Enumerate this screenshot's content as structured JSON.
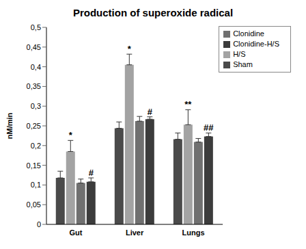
{
  "chart_data": {
    "type": "bar",
    "title": "Production of superoxide radical",
    "y_label": "nM/min",
    "categories": [
      "Gut",
      "Liver",
      "Lungs"
    ],
    "series": [
      {
        "name": "Sham",
        "color": "#4a4a4a",
        "values": [
          0.118,
          0.244,
          0.216
        ],
        "errors": [
          0.017,
          0.016,
          0.016
        ],
        "annotations": [
          null,
          null,
          null
        ]
      },
      {
        "name": "H/S",
        "color": "#a3a3a3",
        "values": [
          0.185,
          0.405,
          0.253
        ],
        "errors": [
          0.028,
          0.027,
          0.038
        ],
        "annotations": [
          "*",
          "*",
          "**"
        ]
      },
      {
        "name": "Clonidine",
        "color": "#707070",
        "values": [
          0.105,
          0.262,
          0.209
        ],
        "errors": [
          0.01,
          0.012,
          0.009
        ],
        "annotations": [
          null,
          null,
          null
        ]
      },
      {
        "name": "Clonidine-H/S",
        "color": "#3c3c3c",
        "values": [
          0.108,
          0.267,
          0.223
        ],
        "errors": [
          0.01,
          0.006,
          0.009
        ],
        "annotations": [
          "#",
          "#",
          "##"
        ]
      }
    ],
    "ylim": [
      0,
      0.5
    ],
    "yticks": [
      0,
      {
        "value": 0.05,
        "label": "0,05"
      },
      {
        "value": 0.1,
        "label": "0,1"
      },
      {
        "value": 0.15,
        "label": "0,15"
      },
      {
        "value": 0.2,
        "label": "0,2"
      },
      {
        "value": 0.25,
        "label": "0,25"
      },
      {
        "value": 0.3,
        "label": "0,3"
      },
      {
        "value": 0.35,
        "label": "0,35"
      },
      {
        "value": 0.4,
        "label": "0,4"
      },
      {
        "value": 0.45,
        "label": "0,45"
      },
      {
        "value": 0.5,
        "label": "0,5"
      }
    ],
    "grid": false,
    "legend": "top-right"
  }
}
